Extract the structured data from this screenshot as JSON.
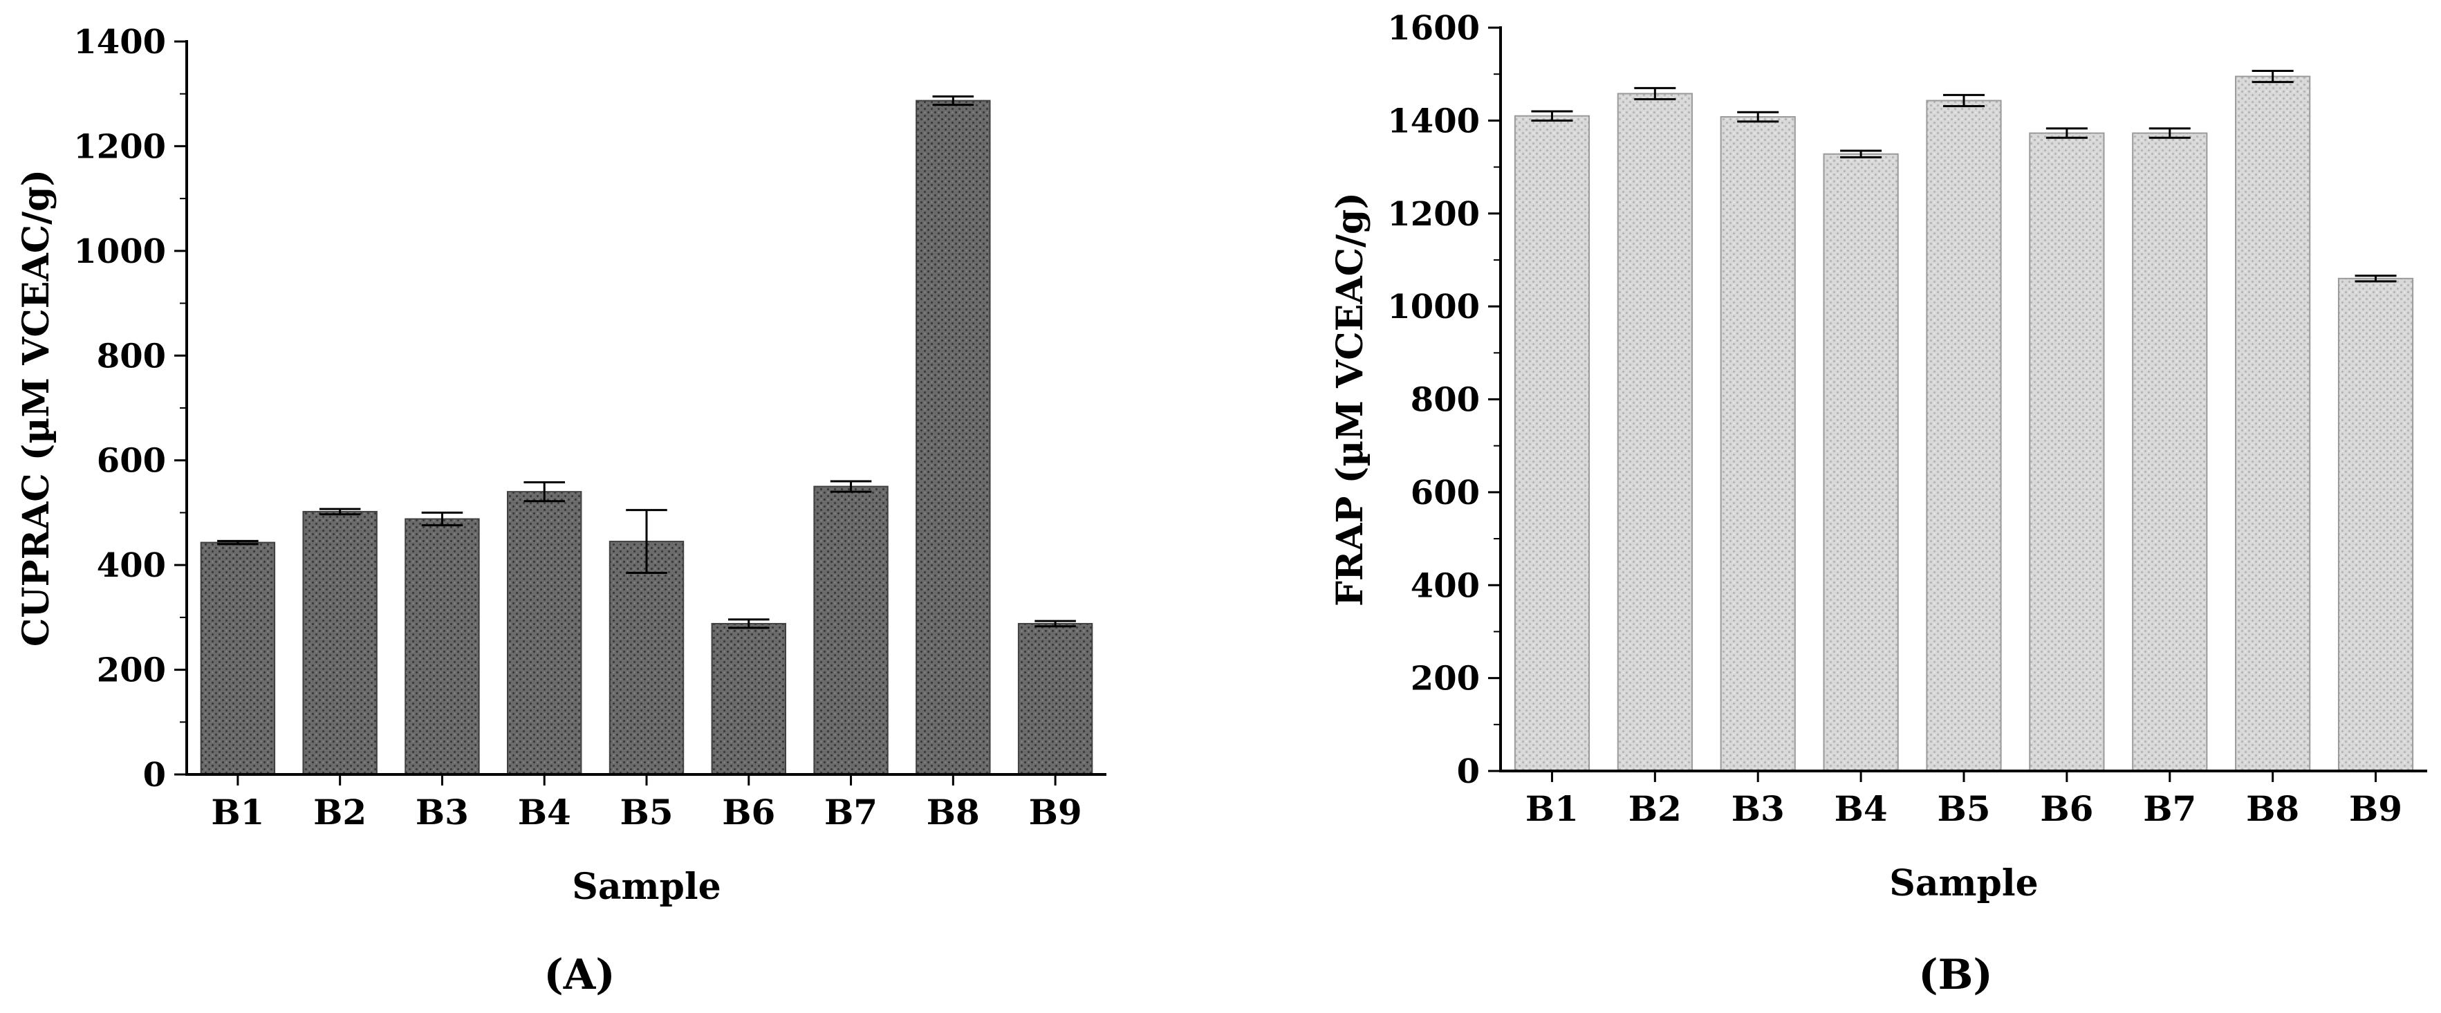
{
  "panels": [
    {
      "panel_label": "(A)",
      "chart_data": {
        "type": "bar",
        "title": "",
        "xlabel": "Sample",
        "ylabel": "CUPRAC  (µM VCEAC/g)",
        "categories": [
          "B1",
          "B2",
          "B3",
          "B4",
          "B5",
          "B6",
          "B7",
          "B8",
          "B9"
        ],
        "values": [
          443,
          502,
          488,
          540,
          445,
          288,
          550,
          1287,
          288
        ],
        "errors": [
          3,
          5,
          12,
          18,
          60,
          8,
          10,
          8,
          5
        ],
        "ylim": [
          0,
          1400
        ],
        "yticks": [
          0,
          200,
          400,
          600,
          800,
          1000,
          1200,
          1400
        ],
        "bar_style": "dark-gray-pattern",
        "grid": false,
        "legend": "none"
      }
    },
    {
      "panel_label": "(B)",
      "chart_data": {
        "type": "bar",
        "title": "",
        "xlabel": "Sample",
        "ylabel": "FRAP (µM VCEAC/g)",
        "categories": [
          "B1",
          "B2",
          "B3",
          "B4",
          "B5",
          "B6",
          "B7",
          "B8",
          "B9"
        ],
        "values": [
          1410,
          1458,
          1408,
          1328,
          1443,
          1373,
          1373,
          1495,
          1060
        ],
        "errors": [
          10,
          12,
          10,
          7,
          12,
          10,
          10,
          12,
          6
        ],
        "ylim": [
          0,
          1600
        ],
        "yticks": [
          0,
          200,
          400,
          600,
          800,
          1000,
          1200,
          1400,
          1600
        ],
        "bar_style": "light-gray-pattern",
        "grid": false,
        "legend": "none"
      }
    }
  ],
  "colors": {
    "panel_a_bar": "#5f5f5f",
    "panel_b_bar": "#cfcfcf",
    "axis": "#000000"
  }
}
